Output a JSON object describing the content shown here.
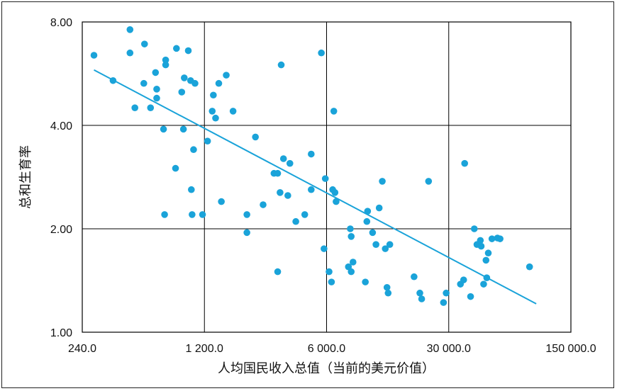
{
  "chart_data": {
    "type": "scatter",
    "title": "",
    "xlabel": "人均国民收入总值（当前的美元价值）",
    "ylabel": "总和生育率",
    "xscale": "log",
    "yscale": "log",
    "xlim": [
      240,
      150000
    ],
    "ylim": [
      1.0,
      8.0
    ],
    "x_ticks": [
      240,
      1200,
      6000,
      30000,
      150000
    ],
    "x_tick_labels": [
      "240.0",
      "1 200.0",
      "6 000.0",
      "30 000.0",
      "150 000.0"
    ],
    "y_ticks": [
      1.0,
      2.0,
      4.0,
      8.0
    ],
    "y_tick_labels": [
      "1.00",
      "2.00",
      "4.00",
      "8.00"
    ],
    "grid": true,
    "colors": {
      "points": "#1aa3d9",
      "trendline": "#1aa3d9",
      "grid": "#000000"
    },
    "trendline": {
      "x": [
        280,
        95000
      ],
      "y": [
        5.8,
        1.21
      ]
    },
    "points": [
      {
        "x": 280,
        "y": 6.4
      },
      {
        "x": 360,
        "y": 5.4
      },
      {
        "x": 450,
        "y": 7.6
      },
      {
        "x": 450,
        "y": 6.5
      },
      {
        "x": 480,
        "y": 4.5
      },
      {
        "x": 540,
        "y": 5.3
      },
      {
        "x": 545,
        "y": 6.9
      },
      {
        "x": 590,
        "y": 4.5
      },
      {
        "x": 630,
        "y": 5.7
      },
      {
        "x": 640,
        "y": 5.1
      },
      {
        "x": 640,
        "y": 4.8
      },
      {
        "x": 700,
        "y": 3.9
      },
      {
        "x": 710,
        "y": 2.2
      },
      {
        "x": 720,
        "y": 6.2
      },
      {
        "x": 720,
        "y": 6.0
      },
      {
        "x": 820,
        "y": 3.0
      },
      {
        "x": 830,
        "y": 6.7
      },
      {
        "x": 890,
        "y": 5.0
      },
      {
        "x": 910,
        "y": 3.9
      },
      {
        "x": 920,
        "y": 5.5
      },
      {
        "x": 970,
        "y": 6.6
      },
      {
        "x": 1000,
        "y": 5.4
      },
      {
        "x": 1010,
        "y": 2.6
      },
      {
        "x": 1020,
        "y": 2.2
      },
      {
        "x": 1040,
        "y": 3.4
      },
      {
        "x": 1060,
        "y": 5.3
      },
      {
        "x": 1170,
        "y": 2.2
      },
      {
        "x": 1250,
        "y": 3.6
      },
      {
        "x": 1330,
        "y": 4.4
      },
      {
        "x": 1350,
        "y": 4.9
      },
      {
        "x": 1390,
        "y": 4.2
      },
      {
        "x": 1450,
        "y": 5.3
      },
      {
        "x": 1500,
        "y": 2.4
      },
      {
        "x": 1600,
        "y": 5.6
      },
      {
        "x": 1750,
        "y": 4.4
      },
      {
        "x": 2100,
        "y": 2.2
      },
      {
        "x": 2100,
        "y": 1.95
      },
      {
        "x": 2350,
        "y": 3.7
      },
      {
        "x": 2600,
        "y": 2.35
      },
      {
        "x": 3000,
        "y": 2.9
      },
      {
        "x": 3150,
        "y": 1.5
      },
      {
        "x": 3150,
        "y": 2.9
      },
      {
        "x": 3250,
        "y": 2.55
      },
      {
        "x": 3300,
        "y": 6.0
      },
      {
        "x": 3400,
        "y": 3.2
      },
      {
        "x": 3600,
        "y": 2.5
      },
      {
        "x": 3700,
        "y": 3.1
      },
      {
        "x": 4000,
        "y": 2.1
      },
      {
        "x": 4500,
        "y": 2.2
      },
      {
        "x": 4900,
        "y": 3.3
      },
      {
        "x": 4900,
        "y": 2.6
      },
      {
        "x": 5600,
        "y": 6.5
      },
      {
        "x": 5800,
        "y": 1.75
      },
      {
        "x": 5900,
        "y": 2.8
      },
      {
        "x": 6200,
        "y": 1.5
      },
      {
        "x": 6400,
        "y": 1.4
      },
      {
        "x": 6500,
        "y": 2.6
      },
      {
        "x": 6600,
        "y": 4.4
      },
      {
        "x": 6700,
        "y": 2.55
      },
      {
        "x": 6800,
        "y": 2.4
      },
      {
        "x": 8000,
        "y": 1.55
      },
      {
        "x": 8200,
        "y": 2.0
      },
      {
        "x": 8300,
        "y": 1.9
      },
      {
        "x": 8300,
        "y": 1.5
      },
      {
        "x": 8500,
        "y": 1.6
      },
      {
        "x": 10000,
        "y": 1.4
      },
      {
        "x": 10200,
        "y": 2.1
      },
      {
        "x": 10300,
        "y": 2.25
      },
      {
        "x": 11000,
        "y": 1.95
      },
      {
        "x": 11500,
        "y": 1.8
      },
      {
        "x": 12000,
        "y": 2.3
      },
      {
        "x": 12500,
        "y": 2.75
      },
      {
        "x": 13000,
        "y": 1.75
      },
      {
        "x": 13300,
        "y": 1.35
      },
      {
        "x": 13500,
        "y": 1.3
      },
      {
        "x": 13800,
        "y": 1.8
      },
      {
        "x": 19000,
        "y": 1.45
      },
      {
        "x": 20500,
        "y": 1.3
      },
      {
        "x": 21000,
        "y": 1.25
      },
      {
        "x": 23000,
        "y": 2.75
      },
      {
        "x": 28000,
        "y": 1.22
      },
      {
        "x": 29000,
        "y": 1.3
      },
      {
        "x": 35000,
        "y": 1.38
      },
      {
        "x": 36500,
        "y": 1.42
      },
      {
        "x": 37000,
        "y": 3.1
      },
      {
        "x": 40000,
        "y": 1.27
      },
      {
        "x": 42000,
        "y": 2.0
      },
      {
        "x": 43500,
        "y": 1.8
      },
      {
        "x": 45500,
        "y": 1.85
      },
      {
        "x": 46000,
        "y": 1.78
      },
      {
        "x": 47500,
        "y": 1.38
      },
      {
        "x": 49000,
        "y": 1.62
      },
      {
        "x": 49500,
        "y": 1.44
      },
      {
        "x": 50500,
        "y": 1.7
      },
      {
        "x": 53000,
        "y": 1.87
      },
      {
        "x": 57000,
        "y": 1.88
      },
      {
        "x": 59000,
        "y": 1.87
      },
      {
        "x": 87000,
        "y": 1.55
      }
    ]
  }
}
